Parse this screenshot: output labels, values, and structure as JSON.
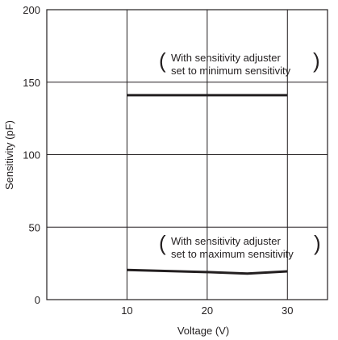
{
  "chart_data": {
    "type": "line",
    "title": "",
    "xlabel": "Voltage (V)",
    "ylabel": "Sensitivity (pF)",
    "xlim": [
      0,
      35
    ],
    "ylim": [
      0,
      200
    ],
    "xticks": [
      10,
      20,
      30
    ],
    "yticks": [
      0,
      50,
      100,
      150,
      200
    ],
    "grid": true,
    "legend": "none",
    "series": [
      {
        "x": [
          10,
          20,
          30
        ],
        "y": [
          141,
          141,
          141
        ]
      },
      {
        "x": [
          10,
          20,
          25,
          30
        ],
        "y": [
          20.5,
          19,
          18,
          19.5
        ]
      }
    ],
    "annotations": [
      {
        "lines": [
          "With sensitivity adjuster",
          "set to minimum sensitivity"
        ]
      },
      {
        "lines": [
          "With sensitivity adjuster",
          "set to maximum sensitivity"
        ]
      }
    ],
    "colors": {
      "line": "#231f20",
      "grid": "#231f20"
    }
  }
}
